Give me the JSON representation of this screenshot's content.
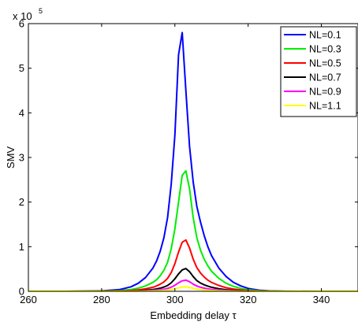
{
  "chart_data": {
    "type": "line",
    "xlabel": "Embedding delay τ",
    "ylabel": "SMV",
    "xlim": [
      260,
      350
    ],
    "ylim": [
      0,
      600000
    ],
    "x_ticks": [
      260,
      280,
      300,
      320,
      340
    ],
    "y_ticks": [
      0,
      1,
      2,
      3,
      4,
      5,
      6
    ],
    "y_multiplier": {
      "base": "x 10",
      "exponent": "5"
    },
    "grid": false,
    "legend_position": "top-right",
    "x": [
      260,
      270,
      280,
      285,
      288,
      290,
      292,
      294,
      295,
      296,
      297,
      298,
      299,
      300,
      301,
      302,
      303,
      304,
      305,
      306,
      307,
      308,
      309,
      310,
      312,
      314,
      316,
      318,
      320,
      323,
      326,
      330,
      340,
      350
    ],
    "series": [
      {
        "name": "NL=0.1",
        "color": "#0000ff",
        "values": [
          0,
          0,
          800,
          4000,
          10000,
          18000,
          31000,
          52000,
          68000,
          90000,
          120000,
          165000,
          240000,
          350000,
          530000,
          580000,
          450000,
          325000,
          245000,
          190000,
          155000,
          125000,
          100000,
          80000,
          52000,
          33000,
          20000,
          12000,
          6500,
          2500,
          800,
          200,
          0,
          0
        ]
      },
      {
        "name": "NL=0.3",
        "color": "#00ee00",
        "values": [
          0,
          0,
          300,
          1500,
          4000,
          7000,
          12000,
          20000,
          26000,
          35000,
          47000,
          65000,
          95000,
          140000,
          200000,
          260000,
          270000,
          230000,
          165000,
          120000,
          92000,
          72000,
          57000,
          45000,
          29000,
          18000,
          11000,
          6500,
          3500,
          1300,
          400,
          100,
          0,
          0
        ]
      },
      {
        "name": "NL=0.5",
        "color": "#ff0000",
        "values": [
          0,
          0,
          150,
          700,
          1800,
          3200,
          5500,
          9000,
          12000,
          16000,
          21000,
          29000,
          42000,
          62000,
          88000,
          110000,
          115000,
          97000,
          72000,
          53000,
          41000,
          32000,
          25000,
          20000,
          13000,
          8000,
          5000,
          3000,
          1600,
          600,
          200,
          50,
          0,
          0
        ]
      },
      {
        "name": "NL=0.7",
        "color": "#000000",
        "values": [
          0,
          0,
          70,
          300,
          800,
          1400,
          2500,
          4000,
          5300,
          7000,
          9500,
          13000,
          19000,
          28000,
          39000,
          48000,
          51000,
          44000,
          33000,
          24000,
          18500,
          14500,
          11500,
          9000,
          5800,
          3600,
          2200,
          1300,
          700,
          260,
          80,
          20,
          0,
          0
        ]
      },
      {
        "name": "NL=0.9",
        "color": "#ff00ff",
        "values": [
          0,
          0,
          30,
          150,
          400,
          700,
          1200,
          2000,
          2600,
          3400,
          4600,
          6400,
          9200,
          13500,
          19000,
          23500,
          25000,
          21500,
          16000,
          11800,
          9000,
          7000,
          5500,
          4300,
          2800,
          1700,
          1000,
          600,
          330,
          120,
          40,
          10,
          0,
          0
        ]
      },
      {
        "name": "NL=1.1",
        "color": "#ffff00",
        "values": [
          0,
          0,
          12,
          60,
          160,
          280,
          480,
          800,
          1050,
          1400,
          1900,
          2600,
          3800,
          5600,
          7800,
          9600,
          10200,
          8800,
          6600,
          4900,
          3700,
          2900,
          2300,
          1800,
          1150,
          700,
          430,
          260,
          140,
          50,
          15,
          4,
          0,
          0
        ]
      }
    ]
  }
}
